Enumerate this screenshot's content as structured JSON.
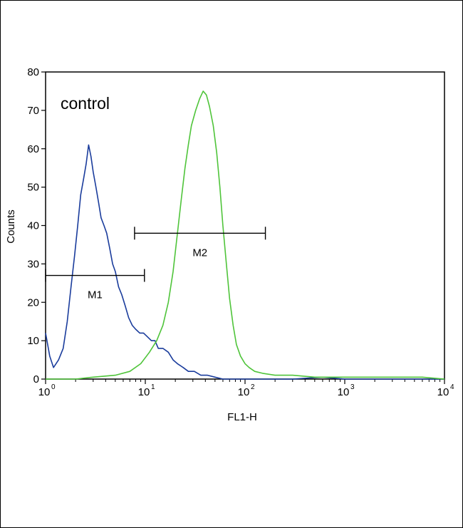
{
  "chart_data": {
    "type": "line",
    "annotation": "control",
    "xlabel": "FL1-H",
    "ylabel": "Counts",
    "x_scale": "log",
    "xlim": [
      1,
      10000
    ],
    "ylim": [
      0,
      80
    ],
    "x_ticks": [
      {
        "base": "10",
        "exp": "0",
        "value": 1
      },
      {
        "base": "10",
        "exp": "1",
        "value": 10
      },
      {
        "base": "10",
        "exp": "2",
        "value": 100
      },
      {
        "base": "10",
        "exp": "3",
        "value": 1000
      },
      {
        "base": "10",
        "exp": "4",
        "value": 10000
      }
    ],
    "y_ticks": [
      "0",
      "10",
      "20",
      "30",
      "40",
      "50",
      "60",
      "70",
      "80"
    ],
    "series": [
      {
        "color": "#1a3c9c",
        "points": [
          [
            1.0,
            12
          ],
          [
            1.1,
            6
          ],
          [
            1.2,
            3
          ],
          [
            1.35,
            5
          ],
          [
            1.5,
            8
          ],
          [
            1.65,
            15
          ],
          [
            1.8,
            24
          ],
          [
            1.95,
            32
          ],
          [
            2.1,
            40
          ],
          [
            2.25,
            48
          ],
          [
            2.4,
            52
          ],
          [
            2.55,
            56
          ],
          [
            2.7,
            61
          ],
          [
            2.85,
            58
          ],
          [
            3.0,
            54
          ],
          [
            3.2,
            50
          ],
          [
            3.4,
            46
          ],
          [
            3.6,
            42
          ],
          [
            3.85,
            40
          ],
          [
            4.1,
            38
          ],
          [
            4.4,
            34
          ],
          [
            4.7,
            30
          ],
          [
            5.0,
            28
          ],
          [
            5.4,
            24
          ],
          [
            5.8,
            22
          ],
          [
            6.3,
            19
          ],
          [
            6.8,
            16
          ],
          [
            7.4,
            14
          ],
          [
            8.0,
            13
          ],
          [
            8.8,
            12
          ],
          [
            9.6,
            12
          ],
          [
            10.5,
            11
          ],
          [
            11.5,
            10
          ],
          [
            12.5,
            10
          ],
          [
            13.5,
            8
          ],
          [
            15,
            8
          ],
          [
            17,
            7
          ],
          [
            19,
            5
          ],
          [
            21,
            4
          ],
          [
            24,
            3
          ],
          [
            27,
            2
          ],
          [
            31,
            2
          ],
          [
            36,
            1
          ],
          [
            42,
            1
          ],
          [
            50,
            0.5
          ],
          [
            60,
            0
          ],
          [
            80,
            0
          ],
          [
            120,
            0
          ],
          [
            300,
            0
          ],
          [
            600,
            0.5
          ],
          [
            1000,
            0
          ],
          [
            3000,
            0
          ],
          [
            10000,
            0
          ]
        ]
      },
      {
        "color": "#4fc43a",
        "points": [
          [
            1.0,
            0
          ],
          [
            2.0,
            0
          ],
          [
            3.0,
            0.5
          ],
          [
            5.0,
            1
          ],
          [
            7.0,
            2
          ],
          [
            9.0,
            4
          ],
          [
            11,
            7
          ],
          [
            13,
            10
          ],
          [
            15,
            14
          ],
          [
            17,
            20
          ],
          [
            19,
            28
          ],
          [
            21,
            38
          ],
          [
            23,
            47
          ],
          [
            25,
            55
          ],
          [
            27,
            61
          ],
          [
            29,
            66
          ],
          [
            32,
            70
          ],
          [
            35,
            73
          ],
          [
            38,
            75
          ],
          [
            41,
            74
          ],
          [
            44,
            71
          ],
          [
            48,
            66
          ],
          [
            52,
            59
          ],
          [
            56,
            50
          ],
          [
            60,
            40
          ],
          [
            65,
            30
          ],
          [
            70,
            21
          ],
          [
            76,
            14
          ],
          [
            82,
            9
          ],
          [
            90,
            6
          ],
          [
            100,
            4
          ],
          [
            110,
            3
          ],
          [
            125,
            2
          ],
          [
            150,
            1.5
          ],
          [
            200,
            1
          ],
          [
            300,
            1
          ],
          [
            500,
            0.5
          ],
          [
            800,
            0.5
          ],
          [
            1500,
            0.5
          ],
          [
            3000,
            0.5
          ],
          [
            6000,
            0.5
          ],
          [
            10000,
            0
          ]
        ]
      }
    ],
    "markers": [
      {
        "label": "M1",
        "x_start": 1.0,
        "x_end": 9.8,
        "y": 27
      },
      {
        "label": "M2",
        "x_start": 7.8,
        "x_end": 160,
        "y": 38
      }
    ]
  }
}
